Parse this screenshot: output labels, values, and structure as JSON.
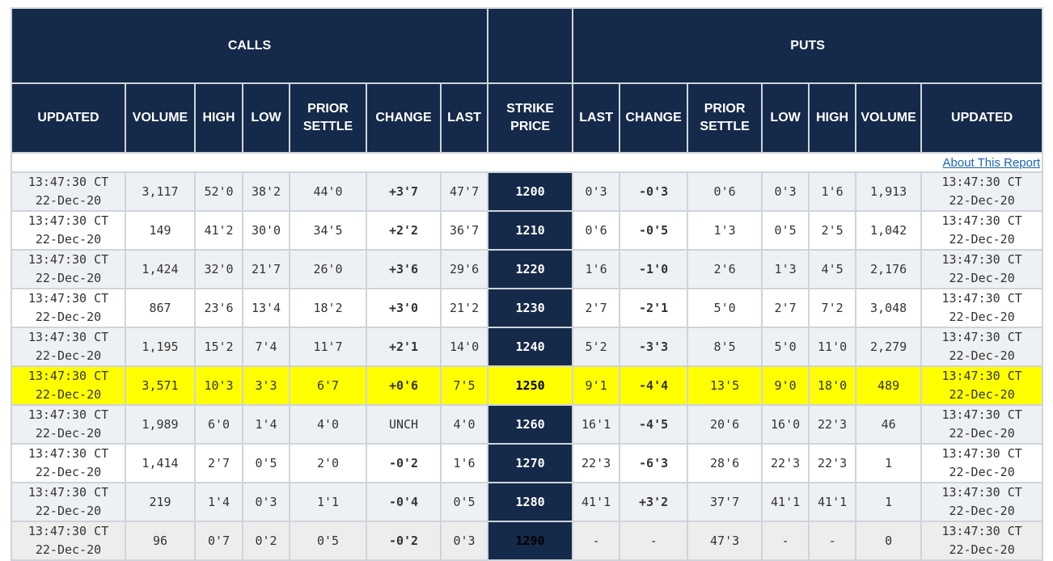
{
  "header": {
    "calls": "CALLS",
    "puts": "PUTS",
    "call_columns": [
      "UPDATED",
      "VOLUME",
      "HIGH",
      "LOW",
      "PRIOR SETTLE",
      "CHANGE",
      "LAST"
    ],
    "strike": "STRIKE PRICE",
    "put_columns": [
      "LAST",
      "CHANGE",
      "PRIOR SETTLE",
      "LOW",
      "HIGH",
      "VOLUME",
      "UPDATED"
    ]
  },
  "about_link": "About This Report",
  "colors": {
    "header_bg": "#152a4a",
    "highlight": "#ffff00",
    "positive": "#1e9a34",
    "negative": "#e0181b"
  },
  "rows": [
    {
      "call_time": "13:47:30 CT",
      "call_date": "22-Dec-20",
      "call_volume": "3,117",
      "call_high": "52'0",
      "call_low": "38'2",
      "call_prior": "44'0",
      "call_change": "+3'7",
      "call_last": "47'7",
      "strike": "1200",
      "put_last": "0'3",
      "put_change": "-0'3",
      "put_prior": "0'6",
      "put_low": "0'3",
      "put_high": "1'6",
      "put_volume": "1,913",
      "put_time": "13:47:30 CT",
      "put_date": "22-Dec-20"
    },
    {
      "call_time": "13:47:30 CT",
      "call_date": "22-Dec-20",
      "call_volume": "149",
      "call_high": "41'2",
      "call_low": "30'0",
      "call_prior": "34'5",
      "call_change": "+2'2",
      "call_last": "36'7",
      "strike": "1210",
      "put_last": "0'6",
      "put_change": "-0'5",
      "put_prior": "1'3",
      "put_low": "0'5",
      "put_high": "2'5",
      "put_volume": "1,042",
      "put_time": "13:47:30 CT",
      "put_date": "22-Dec-20"
    },
    {
      "call_time": "13:47:30 CT",
      "call_date": "22-Dec-20",
      "call_volume": "1,424",
      "call_high": "32'0",
      "call_low": "21'7",
      "call_prior": "26'0",
      "call_change": "+3'6",
      "call_last": "29'6",
      "strike": "1220",
      "put_last": "1'6",
      "put_change": "-1'0",
      "put_prior": "2'6",
      "put_low": "1'3",
      "put_high": "4'5",
      "put_volume": "2,176",
      "put_time": "13:47:30 CT",
      "put_date": "22-Dec-20"
    },
    {
      "call_time": "13:47:30 CT",
      "call_date": "22-Dec-20",
      "call_volume": "867",
      "call_high": "23'6",
      "call_low": "13'4",
      "call_prior": "18'2",
      "call_change": "+3'0",
      "call_last": "21'2",
      "strike": "1230",
      "put_last": "2'7",
      "put_change": "-2'1",
      "put_prior": "5'0",
      "put_low": "2'7",
      "put_high": "7'2",
      "put_volume": "3,048",
      "put_time": "13:47:30 CT",
      "put_date": "22-Dec-20"
    },
    {
      "call_time": "13:47:30 CT",
      "call_date": "22-Dec-20",
      "call_volume": "1,195",
      "call_high": "15'2",
      "call_low": "7'4",
      "call_prior": "11'7",
      "call_change": "+2'1",
      "call_last": "14'0",
      "strike": "1240",
      "put_last": "5'2",
      "put_change": "-3'3",
      "put_prior": "8'5",
      "put_low": "5'0",
      "put_high": "11'0",
      "put_volume": "2,279",
      "put_time": "13:47:30 CT",
      "put_date": "22-Dec-20"
    },
    {
      "call_time": "13:47:30 CT",
      "call_date": "22-Dec-20",
      "call_volume": "3,571",
      "call_high": "10'3",
      "call_low": "3'3",
      "call_prior": "6'7",
      "call_change": "+0'6",
      "call_last": "7'5",
      "strike": "1250",
      "put_last": "9'1",
      "put_change": "-4'4",
      "put_prior": "13'5",
      "put_low": "9'0",
      "put_high": "18'0",
      "put_volume": "489",
      "put_time": "13:47:30 CT",
      "put_date": "22-Dec-20"
    },
    {
      "call_time": "13:47:30 CT",
      "call_date": "22-Dec-20",
      "call_volume": "1,989",
      "call_high": "6'0",
      "call_low": "1'4",
      "call_prior": "4'0",
      "call_change": "UNCH",
      "call_last": "4'0",
      "strike": "1260",
      "put_last": "16'1",
      "put_change": "-4'5",
      "put_prior": "20'6",
      "put_low": "16'0",
      "put_high": "22'3",
      "put_volume": "46",
      "put_time": "13:47:30 CT",
      "put_date": "22-Dec-20"
    },
    {
      "call_time": "13:47:30 CT",
      "call_date": "22-Dec-20",
      "call_volume": "1,414",
      "call_high": "2'7",
      "call_low": "0'5",
      "call_prior": "2'0",
      "call_change": "-0'2",
      "call_last": "1'6",
      "strike": "1270",
      "put_last": "22'3",
      "put_change": "-6'3",
      "put_prior": "28'6",
      "put_low": "22'3",
      "put_high": "22'3",
      "put_volume": "1",
      "put_time": "13:47:30 CT",
      "put_date": "22-Dec-20"
    },
    {
      "call_time": "13:47:30 CT",
      "call_date": "22-Dec-20",
      "call_volume": "219",
      "call_high": "1'4",
      "call_low": "0'3",
      "call_prior": "1'1",
      "call_change": "-0'4",
      "call_last": "0'5",
      "strike": "1280",
      "put_last": "41'1",
      "put_change": "+3'2",
      "put_prior": "37'7",
      "put_low": "41'1",
      "put_high": "41'1",
      "put_volume": "1",
      "put_time": "13:47:30 CT",
      "put_date": "22-Dec-20"
    },
    {
      "call_time": "13:47:30 CT",
      "call_date": "22-Dec-20",
      "call_volume": "96",
      "call_high": "0'7",
      "call_low": "0'2",
      "call_prior": "0'5",
      "call_change": "-0'2",
      "call_last": "0'3",
      "strike": "1290",
      "put_last": "-",
      "put_change": "-",
      "put_prior": "47'3",
      "put_low": "-",
      "put_high": "-",
      "put_volume": "0",
      "put_time": "13:47:30 CT",
      "put_date": "22-Dec-20"
    }
  ]
}
